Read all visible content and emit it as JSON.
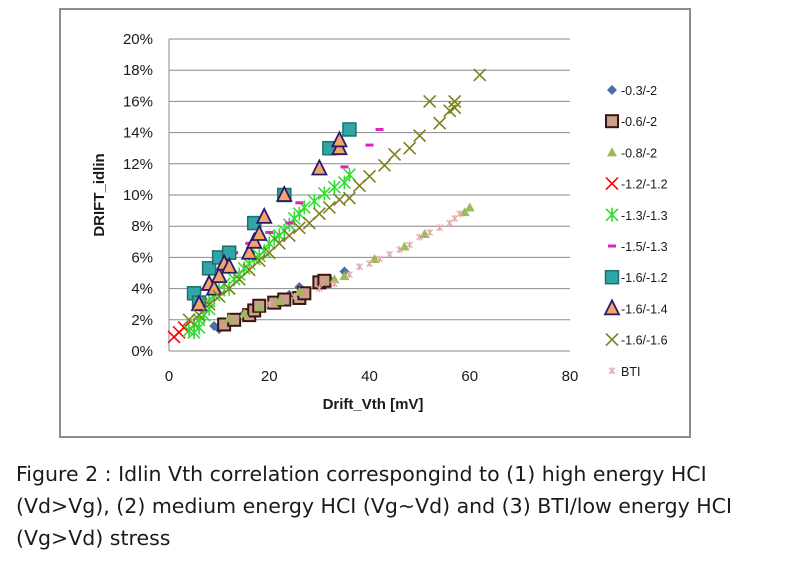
{
  "chart_data": {
    "type": "scatter",
    "xlabel": "Drift_Vth [mV]",
    "ylabel": "DRIFT_idlin",
    "xlim": [
      0,
      80
    ],
    "ylim": [
      0,
      20
    ],
    "x_ticks": [
      "0",
      "20",
      "40",
      "60",
      "80"
    ],
    "y_ticks": [
      "0%",
      "2%",
      "4%",
      "6%",
      "8%",
      "10%",
      "12%",
      "14%",
      "16%",
      "18%",
      "20%"
    ],
    "grid": "horizontal",
    "legend_position": "right",
    "series": [
      {
        "name": "-0.3/-2",
        "marker": "diamond",
        "color": "#4a6fa5",
        "points": [
          [
            9,
            1.6
          ],
          [
            10,
            1.4
          ],
          [
            11,
            1.8
          ],
          [
            13,
            2.1
          ],
          [
            15,
            2.4
          ],
          [
            18,
            2.8
          ],
          [
            24,
            3.6
          ],
          [
            26,
            4.1
          ],
          [
            32,
            4.6
          ],
          [
            35,
            5.1
          ]
        ]
      },
      {
        "name": "-0.6/-2",
        "marker": "square",
        "color": "#6e2b24",
        "points": [
          [
            11,
            1.7
          ],
          [
            13,
            2.0
          ],
          [
            16,
            2.3
          ],
          [
            17,
            2.6
          ],
          [
            18,
            2.9
          ],
          [
            21,
            3.1
          ],
          [
            23,
            3.3
          ],
          [
            26,
            3.4
          ],
          [
            27,
            3.7
          ],
          [
            30,
            4.4
          ],
          [
            31,
            4.5
          ]
        ]
      },
      {
        "name": "-0.8/-2",
        "marker": "triangle-small",
        "color": "#9bbb59",
        "points": [
          [
            12,
            2.1
          ],
          [
            15,
            2.4
          ],
          [
            18,
            2.8
          ],
          [
            22,
            3.2
          ],
          [
            26,
            3.8
          ],
          [
            33,
            4.6
          ],
          [
            35,
            4.8
          ],
          [
            41,
            5.9
          ],
          [
            47,
            6.7
          ],
          [
            51,
            7.5
          ],
          [
            59,
            8.9
          ],
          [
            60,
            9.2
          ]
        ]
      },
      {
        "name": "-1.2/-1.2",
        "marker": "x",
        "color": "#ff0000",
        "points": [
          [
            1,
            0.9
          ],
          [
            2,
            1.2
          ],
          [
            3,
            1.5
          ]
        ]
      },
      {
        "name": "-1.3/-1.3",
        "marker": "star",
        "color": "#33dd33",
        "points": [
          [
            4,
            1.3
          ],
          [
            5,
            1.7
          ],
          [
            5,
            1.2
          ],
          [
            6,
            1.5
          ],
          [
            6,
            2.0
          ],
          [
            7,
            2.3
          ],
          [
            8,
            2.7
          ],
          [
            8,
            3.2
          ],
          [
            9,
            3.6
          ],
          [
            10,
            3.9
          ],
          [
            11,
            4.3
          ],
          [
            12,
            4.0
          ],
          [
            13,
            4.6
          ],
          [
            14,
            4.9
          ],
          [
            15,
            5.3
          ],
          [
            16,
            5.6
          ],
          [
            17,
            5.9
          ],
          [
            18,
            6.1
          ],
          [
            19,
            6.4
          ],
          [
            20,
            6.9
          ],
          [
            21,
            7.2
          ],
          [
            22,
            7.4
          ],
          [
            23,
            7.7
          ],
          [
            24,
            8.1
          ],
          [
            25,
            8.5
          ],
          [
            26,
            8.8
          ],
          [
            27,
            9.2
          ],
          [
            29,
            9.6
          ],
          [
            31,
            10.1
          ],
          [
            33,
            10.5
          ],
          [
            35,
            10.8
          ],
          [
            36,
            11.3
          ]
        ]
      },
      {
        "name": "-1.5/-1.3",
        "marker": "dash",
        "color": "#e020c0",
        "points": [
          [
            13,
            6.3
          ],
          [
            16,
            6.9
          ],
          [
            20,
            7.6
          ],
          [
            24,
            8.2
          ],
          [
            26,
            9.5
          ],
          [
            30,
            11.5
          ],
          [
            35,
            11.8
          ],
          [
            40,
            13.2
          ],
          [
            42,
            14.2
          ]
        ]
      },
      {
        "name": "-1.6/-1.2",
        "marker": "square-large",
        "color": "#31a6a6",
        "points": [
          [
            5,
            3.7
          ],
          [
            6,
            3.1
          ],
          [
            8,
            5.3
          ],
          [
            10,
            6.0
          ],
          [
            12,
            6.3
          ],
          [
            17,
            8.2
          ],
          [
            23,
            10.0
          ],
          [
            32,
            13.0
          ],
          [
            36,
            14.2
          ]
        ]
      },
      {
        "name": "-1.6/-1.4",
        "marker": "triangle-large",
        "color": "#f5a468",
        "points": [
          [
            6,
            3.0
          ],
          [
            8,
            4.3
          ],
          [
            9,
            4.0
          ],
          [
            10,
            4.8
          ],
          [
            11,
            5.6
          ],
          [
            12,
            5.4
          ],
          [
            16,
            6.3
          ],
          [
            17,
            7.0
          ],
          [
            18,
            7.5
          ],
          [
            19,
            8.6
          ],
          [
            23,
            10.0
          ],
          [
            30,
            11.7
          ],
          [
            34,
            13.0
          ],
          [
            34,
            13.5
          ]
        ]
      },
      {
        "name": "-1.6/-1.6",
        "marker": "x",
        "color": "#7f7f1f",
        "points": [
          [
            4,
            2.0
          ],
          [
            6,
            2.3
          ],
          [
            8,
            3.0
          ],
          [
            10,
            3.5
          ],
          [
            12,
            4.0
          ],
          [
            14,
            4.6
          ],
          [
            16,
            5.2
          ],
          [
            18,
            5.8
          ],
          [
            20,
            6.3
          ],
          [
            22,
            6.9
          ],
          [
            24,
            7.4
          ],
          [
            26,
            7.9
          ],
          [
            28,
            8.2
          ],
          [
            30,
            8.8
          ],
          [
            32,
            9.2
          ],
          [
            34,
            9.7
          ],
          [
            36,
            9.8
          ],
          [
            38,
            10.6
          ],
          [
            40,
            11.2
          ],
          [
            43,
            11.9
          ],
          [
            45,
            12.6
          ],
          [
            48,
            13.0
          ],
          [
            50,
            13.8
          ],
          [
            52,
            16.0
          ],
          [
            54,
            14.6
          ],
          [
            56,
            15.4
          ],
          [
            57,
            16.0
          ],
          [
            57,
            15.6
          ],
          [
            62,
            17.7
          ]
        ]
      },
      {
        "name": "BTI",
        "marker": "asterisk-small",
        "color": "#e8a8a8",
        "points": [
          [
            20,
            3.0
          ],
          [
            25,
            3.5
          ],
          [
            30,
            4.0
          ],
          [
            33,
            4.3
          ],
          [
            36,
            4.9
          ],
          [
            38,
            5.4
          ],
          [
            40,
            5.6
          ],
          [
            42,
            5.9
          ],
          [
            44,
            6.2
          ],
          [
            46,
            6.5
          ],
          [
            48,
            6.8
          ],
          [
            50,
            7.3
          ],
          [
            52,
            7.6
          ],
          [
            54,
            7.9
          ],
          [
            56,
            8.2
          ],
          [
            57,
            8.5
          ],
          [
            58,
            8.8
          ]
        ]
      }
    ]
  },
  "caption": {
    "line1": "Figure 2 : Idlin Vth correlation correspongind to (1) high energy HCI",
    "line2": "(Vd>Vg), (2) medium energy HCI (Vg~Vd) and (3) BTI/low energy HCI",
    "line3": "(Vg>Vd) stress"
  }
}
